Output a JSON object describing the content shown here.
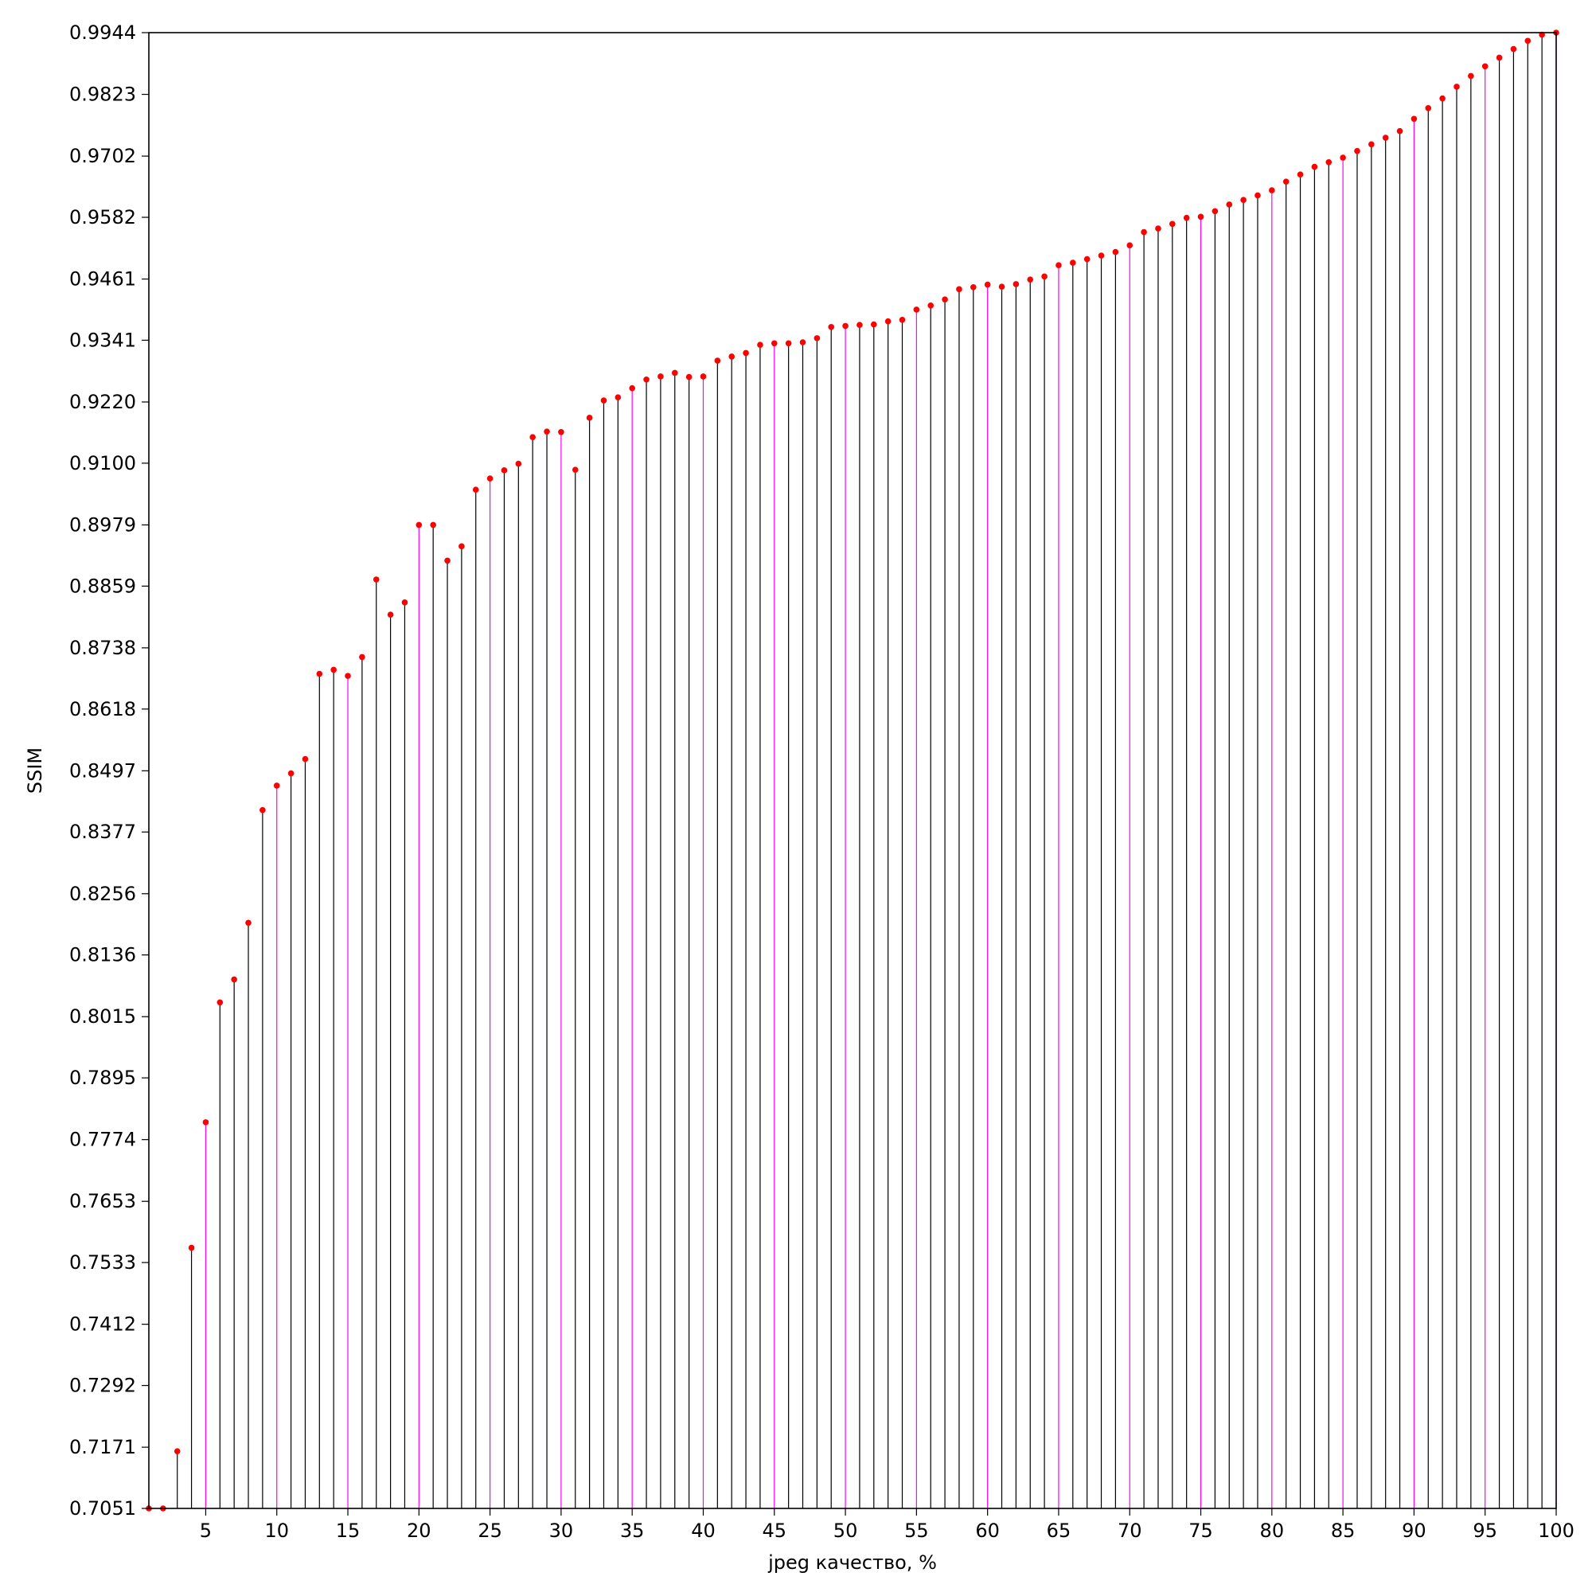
{
  "chart_data": {
    "type": "stem",
    "xlabel": "jpeg качество, %",
    "ylabel": "SSIM",
    "xlim": [
      1,
      100
    ],
    "ylim": [
      0.7051,
      0.9944
    ],
    "grid": false,
    "xticks": [
      "5",
      "10",
      "15",
      "20",
      "25",
      "30",
      "35",
      "40",
      "45",
      "50",
      "55",
      "60",
      "65",
      "70",
      "75",
      "80",
      "85",
      "90",
      "95",
      "100"
    ],
    "yticks": [
      "0.7051",
      "0.7171",
      "0.7292",
      "0.7412",
      "0.7533",
      "0.7653",
      "0.7774",
      "0.7895",
      "0.8015",
      "0.8136",
      "0.8256",
      "0.8377",
      "0.8497",
      "0.8618",
      "0.8738",
      "0.8859",
      "0.8979",
      "0.9100",
      "0.9220",
      "0.9341",
      "0.9461",
      "0.9582",
      "0.9702",
      "0.9823",
      "0.9944"
    ],
    "colors": {
      "marker": "#ff0000",
      "stem": "#000000",
      "highlight_stem": "#ff00ff"
    },
    "highlight_every": 5,
    "x": [
      1,
      2,
      3,
      4,
      5,
      6,
      7,
      8,
      9,
      10,
      11,
      12,
      13,
      14,
      15,
      16,
      17,
      18,
      19,
      20,
      21,
      22,
      23,
      24,
      25,
      26,
      27,
      28,
      29,
      30,
      31,
      32,
      33,
      34,
      35,
      36,
      37,
      38,
      39,
      40,
      41,
      42,
      43,
      44,
      45,
      46,
      47,
      48,
      49,
      50,
      51,
      52,
      53,
      54,
      55,
      56,
      57,
      58,
      59,
      60,
      61,
      62,
      63,
      64,
      65,
      66,
      67,
      68,
      69,
      70,
      71,
      72,
      73,
      74,
      75,
      76,
      77,
      78,
      79,
      80,
      81,
      82,
      83,
      84,
      85,
      86,
      87,
      88,
      89,
      90,
      91,
      92,
      93,
      94,
      95,
      96,
      97,
      98,
      99,
      100
    ],
    "y": [
      0.7051,
      0.7051,
      0.7163,
      0.7562,
      0.7808,
      0.8043,
      0.8088,
      0.8199,
      0.842,
      0.8468,
      0.8492,
      0.852,
      0.8687,
      0.8695,
      0.8683,
      0.872,
      0.8872,
      0.8803,
      0.8827,
      0.8979,
      0.8979,
      0.8909,
      0.8937,
      0.9048,
      0.907,
      0.9086,
      0.9099,
      0.9151,
      0.9162,
      0.9161,
      0.9087,
      0.9189,
      0.9223,
      0.9229,
      0.9247,
      0.9264,
      0.927,
      0.9277,
      0.9269,
      0.927,
      0.9301,
      0.9309,
      0.9316,
      0.9332,
      0.9335,
      0.9335,
      0.9337,
      0.9345,
      0.9367,
      0.9369,
      0.9371,
      0.9372,
      0.9378,
      0.9381,
      0.9401,
      0.9409,
      0.9421,
      0.9441,
      0.9445,
      0.945,
      0.9446,
      0.9451,
      0.946,
      0.9466,
      0.9488,
      0.9493,
      0.95,
      0.9507,
      0.9514,
      0.9527,
      0.9553,
      0.956,
      0.9569,
      0.9581,
      0.9583,
      0.9594,
      0.9607,
      0.9616,
      0.9625,
      0.9635,
      0.9652,
      0.9666,
      0.9681,
      0.969,
      0.9699,
      0.9712,
      0.9725,
      0.9738,
      0.9751,
      0.9775,
      0.9796,
      0.9815,
      0.9838,
      0.9859,
      0.9878,
      0.9895,
      0.9912,
      0.9928,
      0.994,
      0.9944
    ]
  }
}
